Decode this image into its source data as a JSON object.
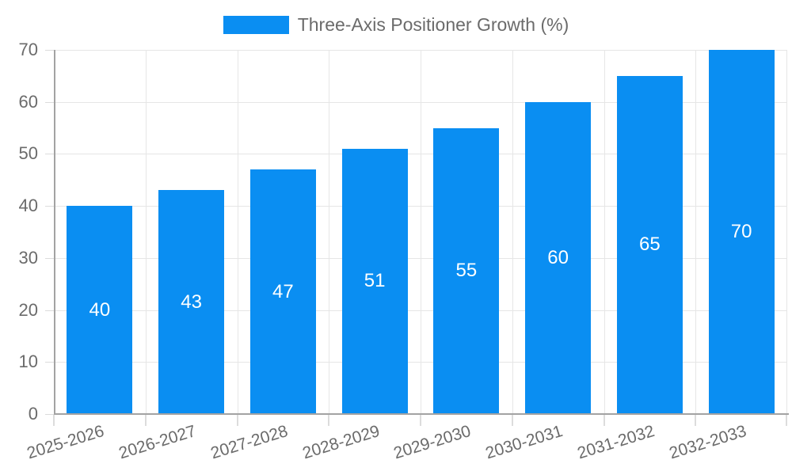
{
  "legend": {
    "label": "Three-Axis Positioner Growth (%)",
    "swatch_color": "#0a8ef2"
  },
  "chart_data": {
    "type": "bar",
    "title": "Three-Axis Positioner Growth (%)",
    "categories": [
      "2025-2026",
      "2026-2027",
      "2027-2028",
      "2028-2029",
      "2029-2030",
      "2030-2031",
      "2031-2032",
      "2032-2033"
    ],
    "values": [
      40,
      43,
      47,
      51,
      55,
      60,
      65,
      70
    ],
    "xlabel": "",
    "ylabel": "",
    "ylim": [
      0,
      70
    ],
    "ytick_step": 10,
    "yticks": [
      0,
      10,
      20,
      30,
      40,
      50,
      60,
      70
    ],
    "grid": true,
    "legend_position": "top",
    "show_value_labels": true,
    "x_label_rotation_deg": -17,
    "colors": {
      "bar": "#0a8ef2",
      "value_label": "#ffffff",
      "axis_text": "#6b6b6b",
      "grid": "#e6e6e6",
      "tick": "#dcdcdc",
      "axis_line": "#a3a3a3",
      "background": "#ffffff"
    }
  }
}
